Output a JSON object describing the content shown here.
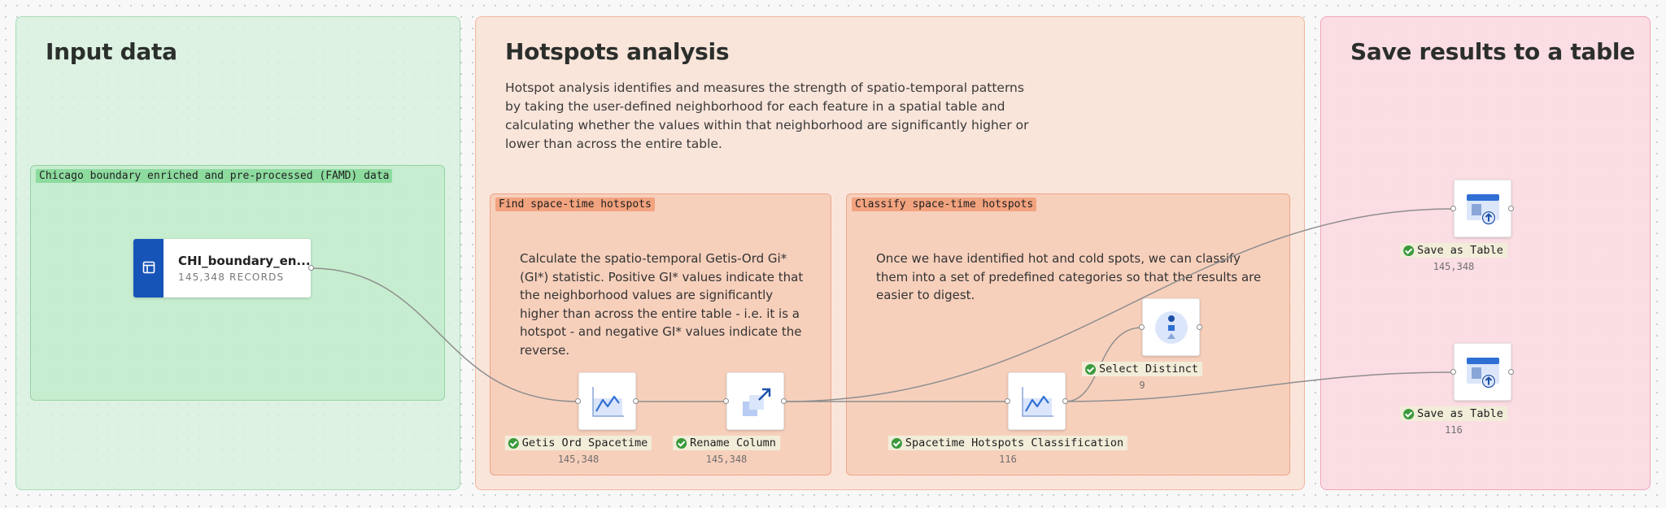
{
  "groups": {
    "input": {
      "title": "Input data"
    },
    "hotspots": {
      "title": "Hotspots analysis",
      "description": "Hotspot analysis identifies and measures the strength of spatio-temporal patterns by taking the user-defined neighborhood for each feature in a spatial table and calculating whether the values within that neighborhood are significantly higher or lower than across the entire table."
    },
    "save": {
      "title": "Save results to a table"
    }
  },
  "subgroups": {
    "chicago": {
      "label": "Chicago boundary enriched and pre-processed (FAMD) data"
    },
    "find": {
      "label": "Find space-time hotspots",
      "description": "Calculate the spatio-temporal Getis-Ord Gi* (GI*) statistic. Positive GI* values indicate that the neighborhood values are significantly higher than across the entire table - i.e. it is a hotspot - and negative GI* values indicate the reverse."
    },
    "classify": {
      "label": "Classify space-time hotspots",
      "description": "Once we have identified hot and cold spots, we can classify them into a set of predefined categories so that the results are easier to digest."
    }
  },
  "source_node": {
    "title": "CHI_boundary_en...",
    "subtitle": "145,348 RECORDS",
    "icon": "table-icon"
  },
  "nodes": [
    {
      "id": "getis",
      "label": "Getis Ord Spacetime",
      "count": "145,348",
      "icon": "line-chart-icon"
    },
    {
      "id": "rename",
      "label": "Rename Column",
      "count": "145,348",
      "icon": "rename-column-icon"
    },
    {
      "id": "classification",
      "label": "Spacetime Hotspots Classification",
      "count": "116",
      "icon": "line-chart-icon"
    },
    {
      "id": "distinct",
      "label": "Select Distinct",
      "count": "9",
      "icon": "select-distinct-icon"
    },
    {
      "id": "save1",
      "label": "Save as Table",
      "count": "145,348",
      "icon": "save-table-icon"
    },
    {
      "id": "save2",
      "label": "Save as Table",
      "count": "116",
      "icon": "save-table-icon"
    }
  ],
  "colors": {
    "input_group": "#d7f0de",
    "hotspot_group": "#fae1d7",
    "save_group": "#fbdae2",
    "source_strip": "#1754b8",
    "status_success": "#3a9a3c",
    "icon_blue": "#2f6fd4"
  }
}
